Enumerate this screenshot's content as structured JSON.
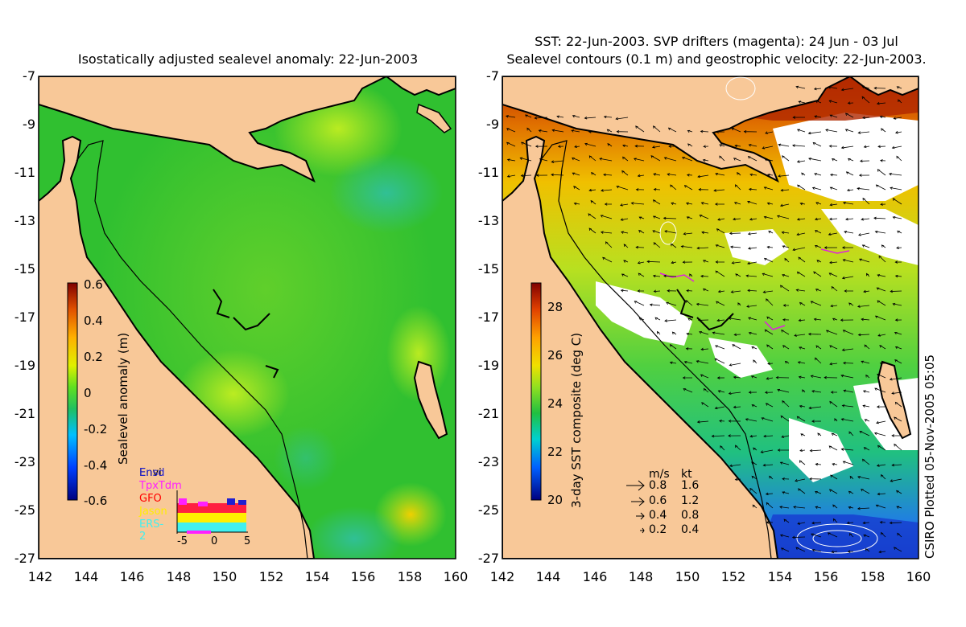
{
  "left_panel": {
    "title": "Isostatically adjusted sealevel anomaly: 22-Jun-2003",
    "colorbar": {
      "label": "Sealevel anomaly (m)",
      "ticks": [
        "0.6",
        "0.4",
        "0.2",
        "0",
        "-0.2",
        "-0.4",
        "-0.6"
      ],
      "range": [
        -0.6,
        0.6
      ]
    },
    "satellites": [
      {
        "name": "Envi",
        "color": "#000000"
      },
      {
        "name": "Ensd",
        "color": "#2020d0"
      },
      {
        "name": "TpxTdm",
        "color": "#ff20ff"
      },
      {
        "name": "GFO",
        "color": "#ff0000"
      },
      {
        "name": "Jason",
        "color": "#ffee00"
      },
      {
        "name": "ERS-2",
        "color": "#40f0f0"
      }
    ],
    "histogram_ticks": [
      "-5",
      "0",
      "5"
    ]
  },
  "right_panel": {
    "title_line1": "SST: 22-Jun-2003. SVP drifters (magenta): 24 Jun - 03 Jul",
    "title_line2": "Sealevel contours (0.1 m) and geostrophic velocity: 22-Jun-2003.",
    "colorbar": {
      "label": "3-day SST composite (deg C)",
      "ticks": [
        "28",
        "26",
        "24",
        "22",
        "20"
      ],
      "range": [
        20,
        29
      ]
    },
    "vector_legend": {
      "header_ms": "m/s",
      "header_kt": "kt",
      "rows": [
        {
          "ms": "0.8",
          "kt": "1.6"
        },
        {
          "ms": "0.6",
          "kt": "1.2"
        },
        {
          "ms": "0.4",
          "kt": "0.8"
        },
        {
          "ms": "0.2",
          "kt": "0.4"
        }
      ]
    },
    "credit": "CSIRO Plotted 05-Nov-2005 05:05"
  },
  "axes": {
    "y_ticks": [
      "-7",
      "-9",
      "-11",
      "-13",
      "-15",
      "-17",
      "-19",
      "-21",
      "-23",
      "-25",
      "-27"
    ],
    "x_ticks": [
      "142",
      "144",
      "146",
      "148",
      "150",
      "152",
      "154",
      "156",
      "158",
      "160"
    ],
    "lat_range": [
      -27,
      -7
    ],
    "lon_range": [
      142,
      160
    ]
  },
  "colors": {
    "land": "#f8c898",
    "ocean_mid": "#30c830",
    "coast": "#000000"
  }
}
